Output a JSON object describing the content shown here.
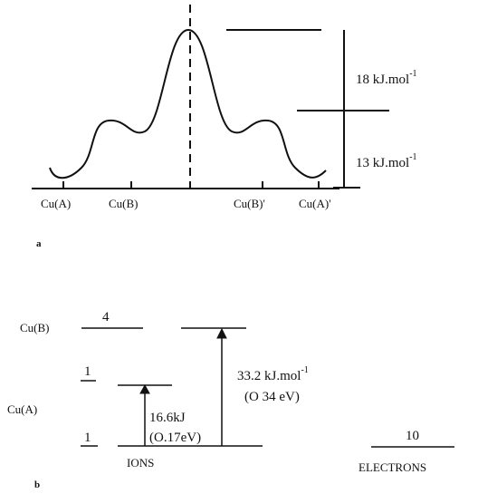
{
  "panel_a": {
    "label": "a",
    "sites": [
      "Cu(A)",
      "Cu(B)",
      "Cu(B)'",
      "Cu(A)'"
    ],
    "barriers": [
      {
        "text": "18 kJ.mol",
        "sup": "-1"
      },
      {
        "text": "13 kJ.mol",
        "sup": "-1"
      }
    ]
  },
  "panel_b": {
    "label": "b",
    "upper_site": "Cu(B)",
    "lower_site": "Cu(A)",
    "upper_count": "4",
    "middle_count": "1",
    "lower_count": "1",
    "small_gap": [
      "16.6kJ",
      "(O.17eV)"
    ],
    "large_gap": {
      "text": "33.2 kJ.mol",
      "sup": "-1",
      "ev": "(O 34 eV)"
    },
    "ions_label": "IONS",
    "electrons_count": "10",
    "electrons_label": "ELECTRONS"
  }
}
